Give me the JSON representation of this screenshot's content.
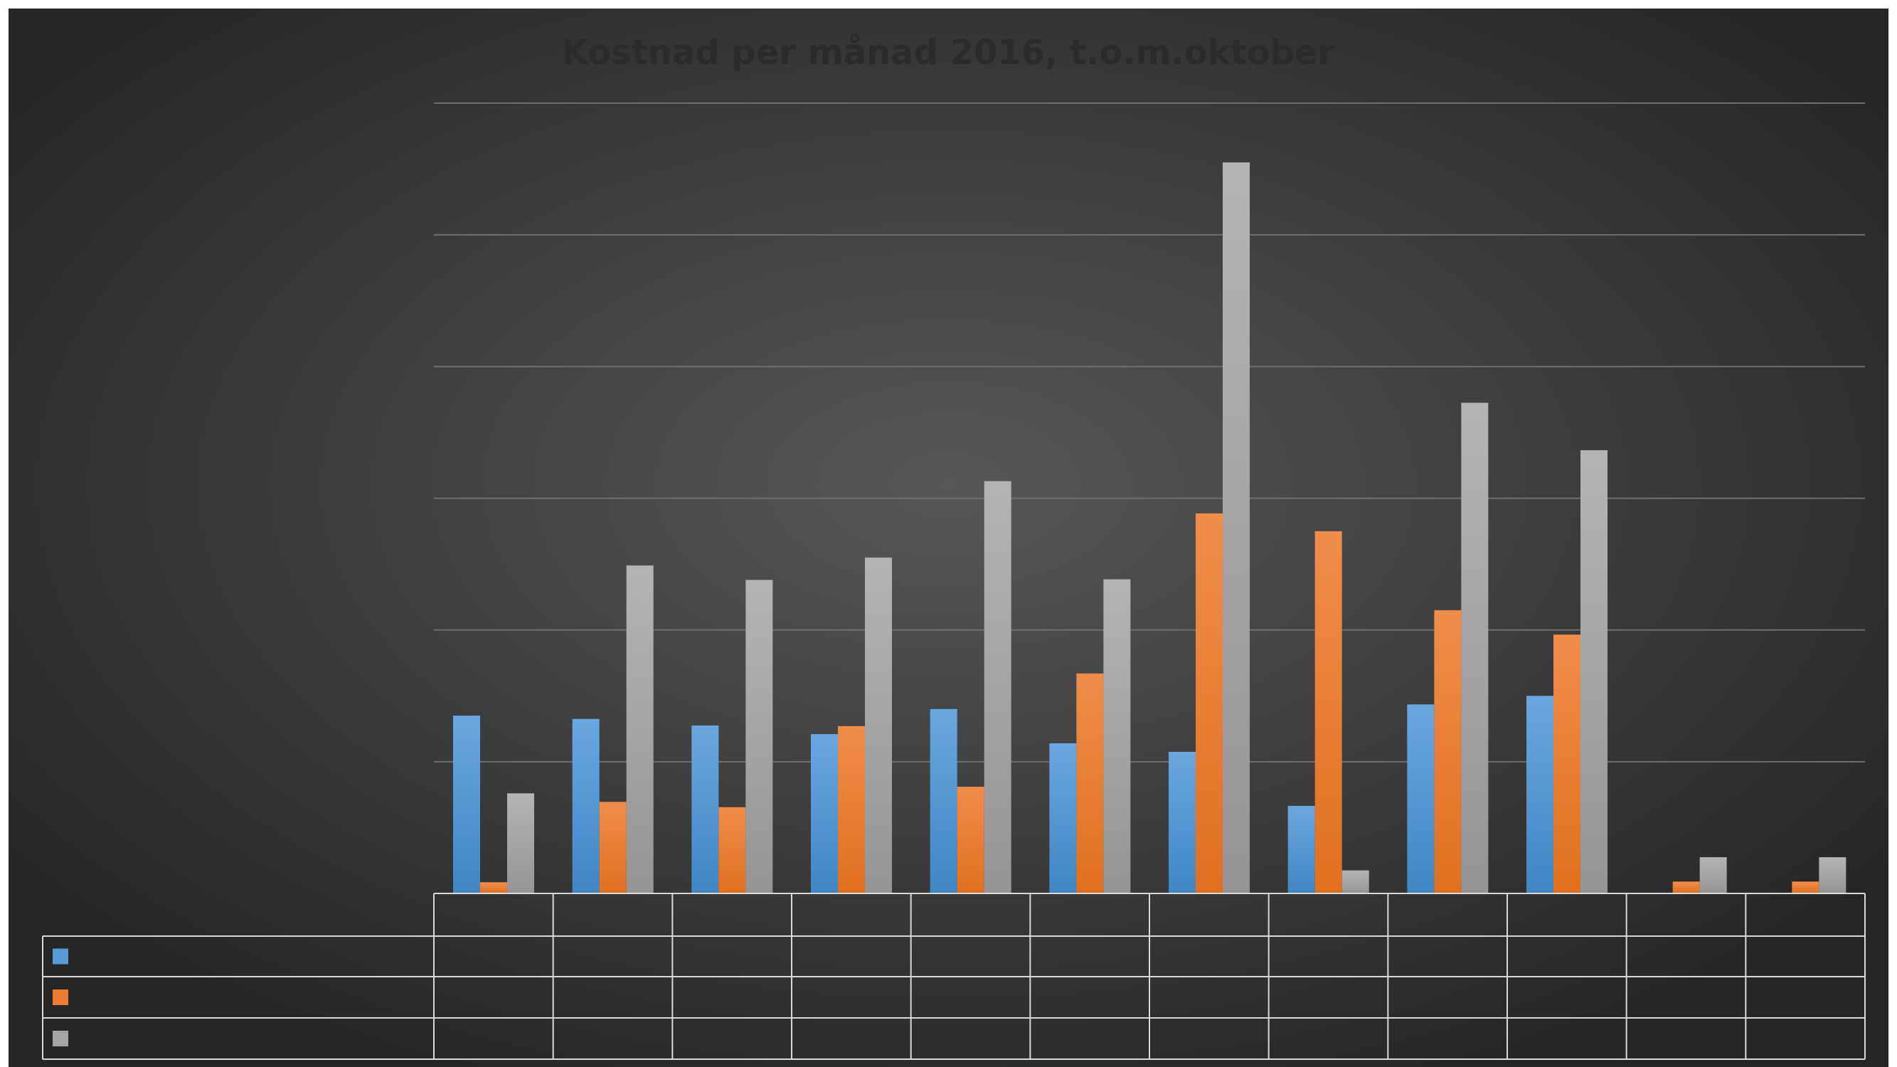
{
  "chart_data": {
    "type": "bar",
    "title": "Kostnad per månad 2016, t.o.m.oktober",
    "categories": [
      "",
      "",
      "",
      "",
      "",
      "",
      "",
      "",
      "",
      "",
      "",
      ""
    ],
    "series": [
      {
        "color": "#5b9bd5",
        "values": [
          2.7,
          2.65,
          2.55,
          2.42,
          2.8,
          2.28,
          2.15,
          1.33,
          2.87,
          3.0,
          0,
          0
        ]
      },
      {
        "color": "#ed7d31",
        "values": [
          0.17,
          1.39,
          1.31,
          2.54,
          1.62,
          3.34,
          5.77,
          5.5,
          4.3,
          3.93,
          0.18,
          0.18
        ]
      },
      {
        "color": "#a5a5a5",
        "values": [
          1.52,
          4.98,
          4.76,
          5.1,
          6.26,
          4.77,
          11.1,
          0.35,
          7.45,
          6.73,
          0.55,
          0.55
        ]
      }
    ],
    "ylim": [
      0,
      12
    ],
    "grid": true,
    "legend": "data-table-bottom-left",
    "background": "#3a3a3a"
  }
}
